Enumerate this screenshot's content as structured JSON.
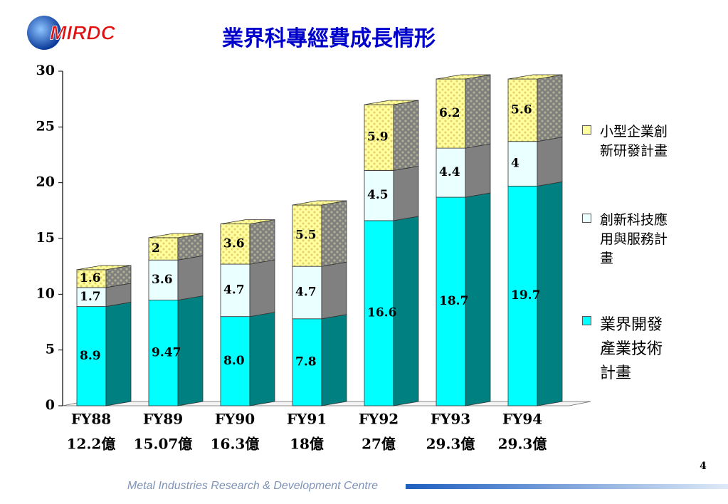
{
  "logo": "MIRDC",
  "footer": "Metal Industries Research & Development Centre",
  "page_number": "4",
  "chart_data": {
    "type": "bar",
    "stacked": true,
    "title": "業界科專經費成長情形",
    "categories": [
      "FY88",
      "FY89",
      "FY90",
      "FY91",
      "FY92",
      "FY93",
      "FY94"
    ],
    "category_totals": [
      "12.2億",
      "15.07億",
      "16.3億",
      "18億",
      "27億",
      "29.3億",
      "29.3億"
    ],
    "series": [
      {
        "name": "業界開發產業技術計畫",
        "color": "#00ffff",
        "side_color": "#008080",
        "values": [
          8.9,
          9.47,
          8.0,
          7.8,
          16.6,
          18.7,
          19.7
        ],
        "value_labels": [
          "8.9",
          "9.47",
          "8.0",
          "7.8",
          "16.6",
          "18.7",
          "19.7"
        ]
      },
      {
        "name": "創新科技應用與服務計畫",
        "color": "#eaffff",
        "side_color": "#808080",
        "values": [
          1.7,
          3.6,
          4.7,
          4.7,
          4.5,
          4.4,
          4
        ],
        "value_labels": [
          "1.7",
          "3.6",
          "4.7",
          "4.7",
          "4.5",
          "4.4",
          "4"
        ]
      },
      {
        "name": "小型企業創新研發計畫",
        "color": "#ffffa0",
        "side_color": "#808080",
        "pattern": true,
        "values": [
          1.6,
          2,
          3.6,
          5.5,
          5.9,
          6.2,
          5.6
        ],
        "value_labels": [
          "1.6",
          "2",
          "3.6",
          "5.5",
          "5.9",
          "6.2",
          "5.6"
        ]
      }
    ],
    "ylim": [
      0,
      30
    ],
    "yticks": [
      0,
      5,
      10,
      15,
      20,
      25,
      30
    ],
    "grid": false
  }
}
